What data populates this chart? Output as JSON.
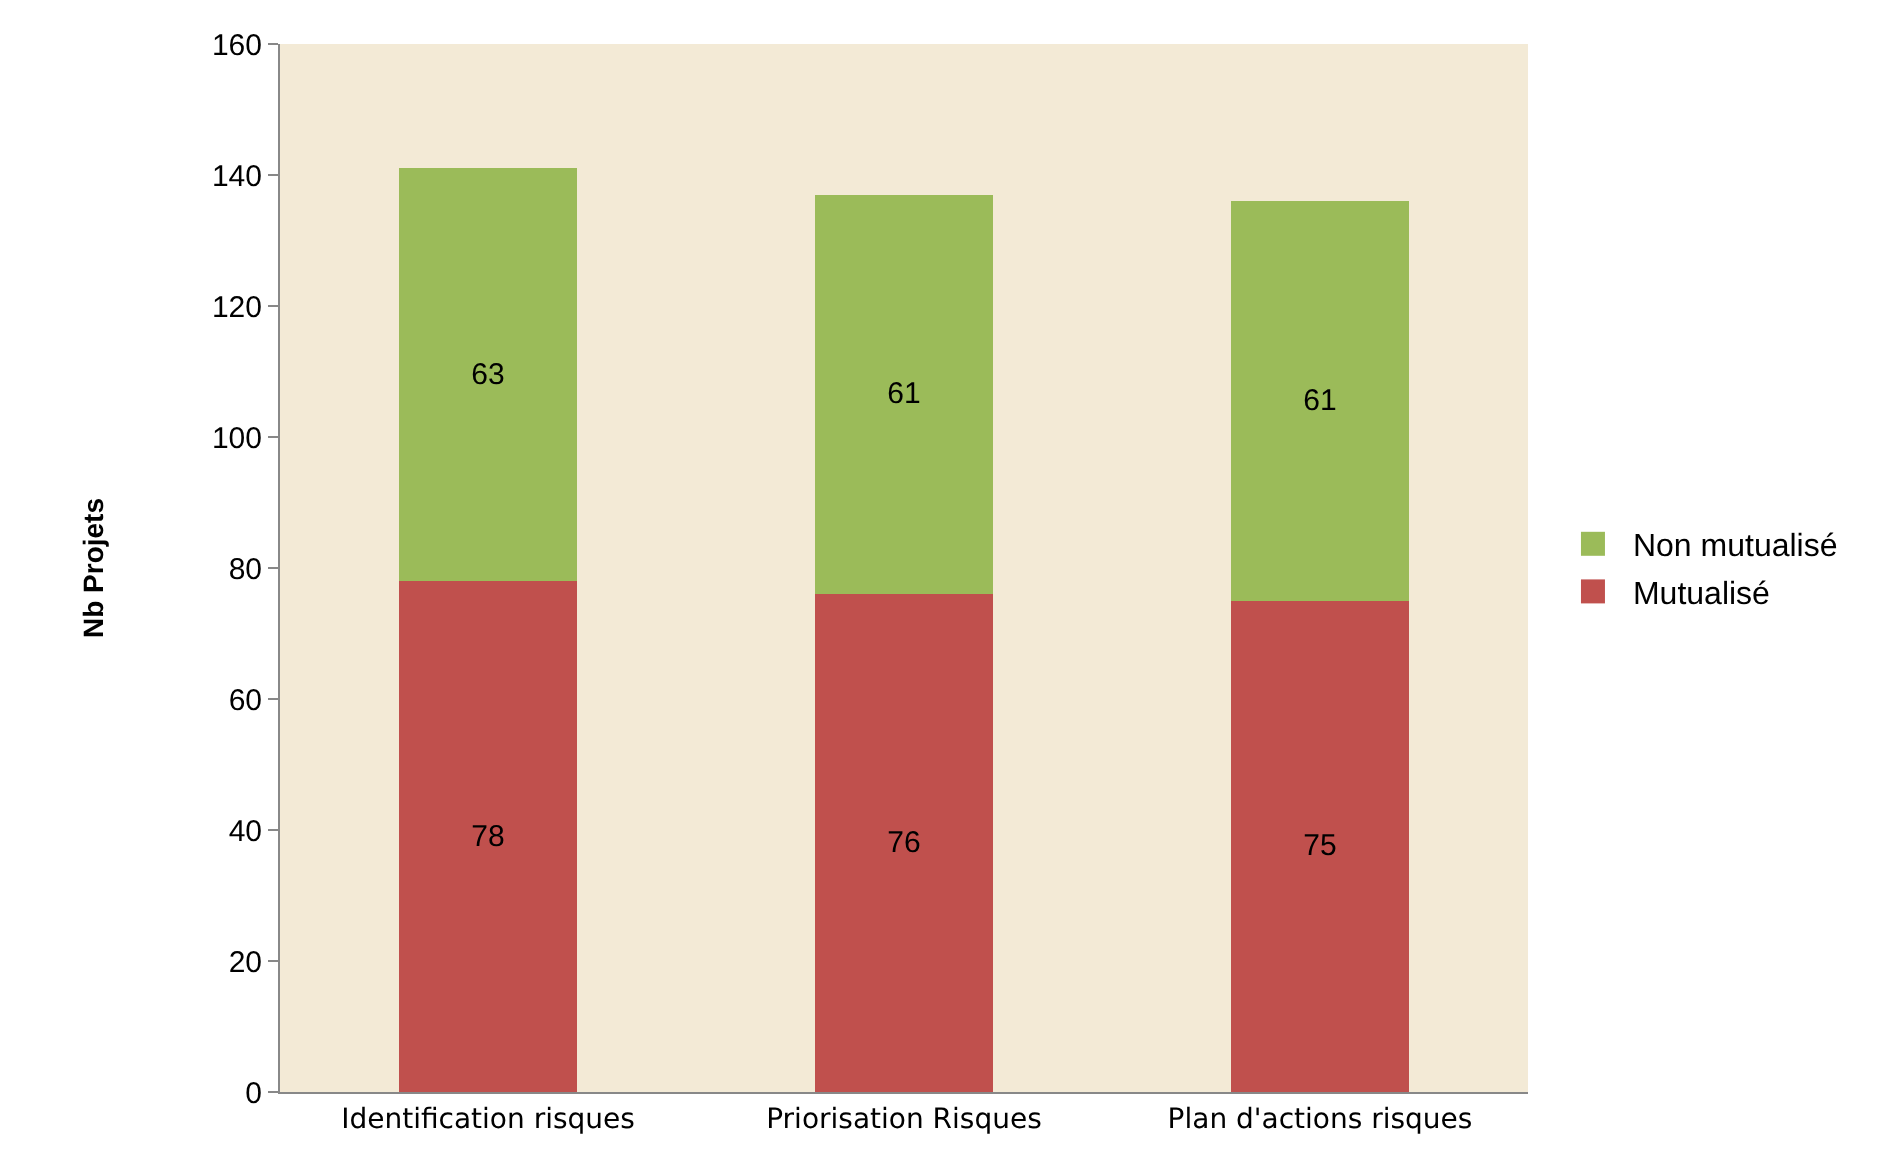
{
  "chart_data": {
    "type": "bar",
    "stacked": true,
    "ylabel": "Nb Projets",
    "categories": [
      "Identification risques",
      "Priorisation Risques",
      "Plan d'actions risques"
    ],
    "series": [
      {
        "name": "Mutualisé",
        "color": "#c0504d",
        "values": [
          78,
          76,
          75
        ]
      },
      {
        "name": "Non mutualisé",
        "color": "#9bbb59",
        "values": [
          63,
          61,
          61
        ]
      }
    ],
    "ylim": [
      0,
      160
    ],
    "yticks": [
      0,
      20,
      40,
      60,
      80,
      100,
      120,
      140,
      160
    ],
    "grid": false,
    "legend": "right",
    "data_labels": true
  }
}
